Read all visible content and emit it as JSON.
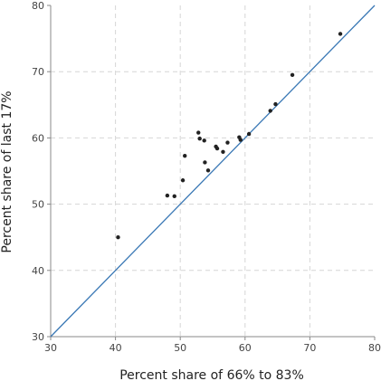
{
  "chart_data": {
    "type": "scatter",
    "xlabel": "Percent share of 66% to 83%",
    "ylabel": "Percent share of last 17%",
    "xlim": [
      30,
      80
    ],
    "ylim": [
      30,
      80
    ],
    "xticks": [
      30,
      40,
      50,
      60,
      70,
      80
    ],
    "yticks": [
      30,
      40,
      50,
      60,
      70,
      80
    ],
    "grid": true,
    "grid_style": "dashed",
    "reference_line": {
      "type": "identity",
      "from": [
        30,
        30
      ],
      "to": [
        80,
        80
      ],
      "color": "#3a78b5"
    },
    "point_color": "#222222",
    "points": [
      {
        "x": 40.4,
        "y": 45.0
      },
      {
        "x": 48.0,
        "y": 51.3
      },
      {
        "x": 49.1,
        "y": 51.2
      },
      {
        "x": 50.4,
        "y": 53.6
      },
      {
        "x": 50.7,
        "y": 57.3
      },
      {
        "x": 52.8,
        "y": 60.8
      },
      {
        "x": 53.0,
        "y": 59.9
      },
      {
        "x": 53.7,
        "y": 59.6
      },
      {
        "x": 53.8,
        "y": 56.3
      },
      {
        "x": 54.3,
        "y": 55.1
      },
      {
        "x": 55.5,
        "y": 58.7
      },
      {
        "x": 55.7,
        "y": 58.4
      },
      {
        "x": 56.6,
        "y": 57.9
      },
      {
        "x": 57.3,
        "y": 59.3
      },
      {
        "x": 59.1,
        "y": 60.1
      },
      {
        "x": 59.3,
        "y": 59.7
      },
      {
        "x": 60.6,
        "y": 60.6
      },
      {
        "x": 63.9,
        "y": 64.1
      },
      {
        "x": 64.7,
        "y": 65.1
      },
      {
        "x": 67.3,
        "y": 69.5
      },
      {
        "x": 74.7,
        "y": 75.7
      }
    ]
  }
}
